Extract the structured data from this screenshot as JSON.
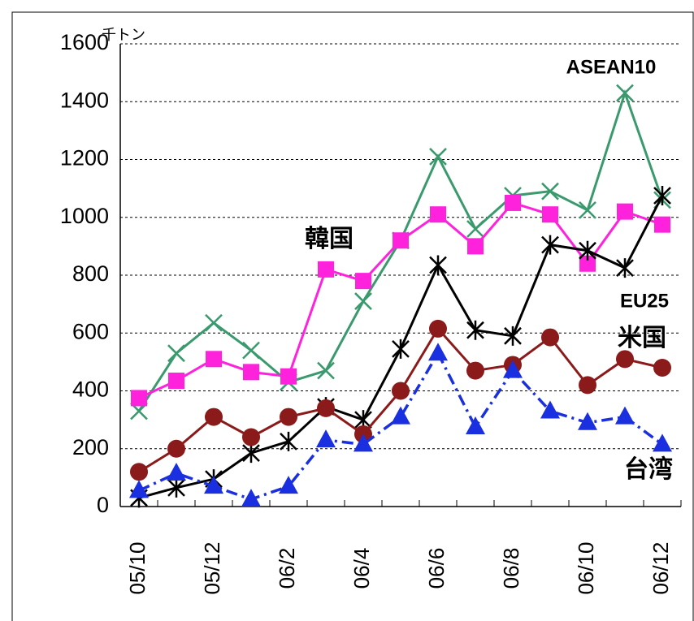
{
  "chart_data": {
    "type": "line",
    "y_label": "千トン",
    "categories": [
      "05/10",
      null,
      "05/12",
      null,
      "06/2",
      null,
      "06/4",
      null,
      "06/6",
      null,
      "06/8",
      null,
      "06/10",
      null,
      "06/12"
    ],
    "ylim": [
      0,
      1600
    ],
    "yticks": [
      0,
      200,
      400,
      600,
      800,
      1000,
      1200,
      1400,
      1600
    ],
    "grid": true,
    "series": [
      {
        "name": "ASEAN10",
        "color": "#3a9a6e",
        "marker": "x",
        "values": [
          330,
          530,
          635,
          540,
          430,
          470,
          710,
          920,
          1210,
          960,
          1075,
          1090,
          1025,
          1430,
          1060
        ]
      },
      {
        "name": "韓国",
        "color": "#ff22dd",
        "marker": "square",
        "values": [
          375,
          435,
          510,
          465,
          450,
          820,
          780,
          920,
          1010,
          900,
          1050,
          1010,
          840,
          1020,
          975
        ]
      },
      {
        "name": "EU25",
        "color": "#000000",
        "marker": "asterisk",
        "values": [
          30,
          65,
          95,
          185,
          225,
          345,
          300,
          545,
          835,
          610,
          590,
          905,
          885,
          825,
          1075
        ]
      },
      {
        "name": "米国",
        "color": "#8b1a1a",
        "marker": "circle",
        "values": [
          120,
          200,
          310,
          240,
          310,
          340,
          250,
          400,
          615,
          470,
          490,
          585,
          420,
          510,
          480
        ]
      },
      {
        "name": "台湾",
        "color": "#1a2fe0",
        "marker": "triangle",
        "dash": true,
        "values": [
          55,
          115,
          70,
          25,
          70,
          230,
          215,
          310,
          530,
          275,
          470,
          330,
          290,
          310,
          215
        ]
      }
    ]
  }
}
